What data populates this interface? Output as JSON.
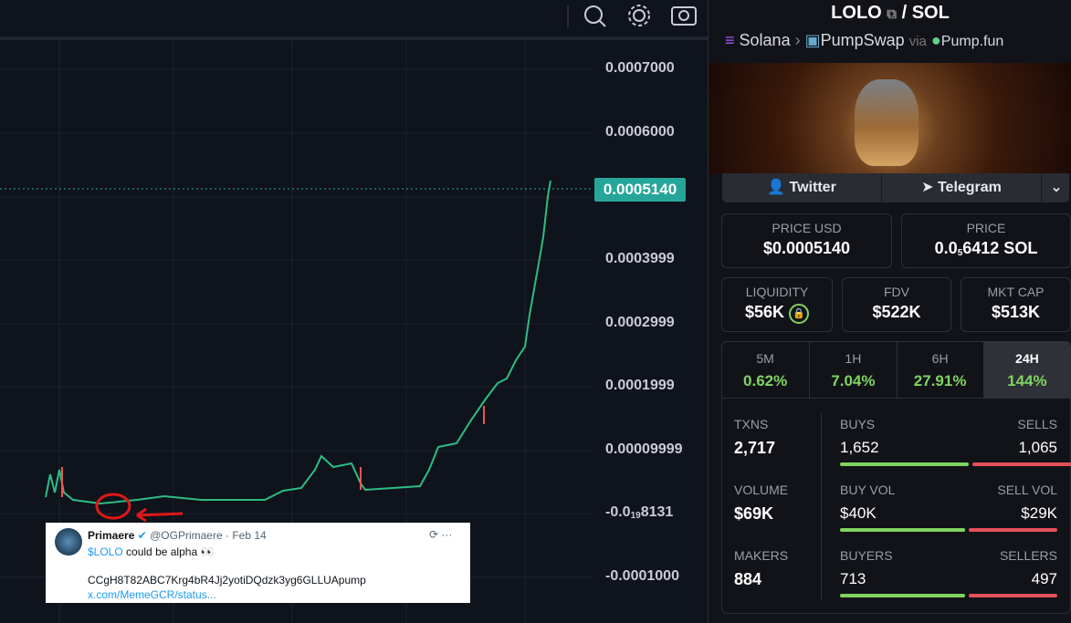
{
  "chart": {
    "axis_labels": [
      "0.0007000",
      "0.0006000",
      "0.0003999",
      "0.0002999",
      "0.0001999",
      "0.00009999",
      "-0.0001000"
    ],
    "current_price": "0.0005140",
    "small_label": {
      "prefix": "-0.0",
      "zeros": "19",
      "rest": "8131"
    }
  },
  "tweet": {
    "name": "Primaere",
    "handle": "@OGPrimaere · Feb 14",
    "cashtag": "$LOLO",
    "text": "could be alpha 👀",
    "contract": "CCgH8T82ABC7Krg4bR4Jj2yotiDQdzk3yg6GLLUApump",
    "link": "x.com/MemeGCR/status..."
  },
  "pair": {
    "base": "LOLO",
    "sep": "/",
    "quote": "SOL",
    "chain": "Solana",
    "dex": "PumpSwap",
    "via": "via",
    "launchpad": "Pump.fun"
  },
  "links": [
    "Twitter",
    "Telegram"
  ],
  "price": {
    "usd_label": "PRICE USD",
    "usd": "$0.0005140",
    "native_label": "PRICE",
    "native": {
      "prefix": "0.0",
      "zeros": "5",
      "rest": "6412 SOL"
    }
  },
  "metrics": [
    {
      "label": "LIQUIDITY",
      "value": "$56K"
    },
    {
      "label": "FDV",
      "value": "$522K"
    },
    {
      "label": "MKT CAP",
      "value": "$513K"
    }
  ],
  "periods": [
    {
      "label": "5M",
      "change": "0.62%"
    },
    {
      "label": "1H",
      "change": "7.04%"
    },
    {
      "label": "6H",
      "change": "27.91%"
    },
    {
      "label": "24H",
      "change": "144%"
    }
  ],
  "stats": [
    {
      "label": "TXNS",
      "value": "2,717",
      "left_label": "BUYS",
      "left": "1,652",
      "right_label": "SELLS",
      "right": "1,065"
    },
    {
      "label": "VOLUME",
      "value": "$69K",
      "left_label": "BUY VOL",
      "left": "$40K",
      "right_label": "SELL VOL",
      "right": "$29K"
    },
    {
      "label": "MAKERS",
      "value": "884",
      "left_label": "BUYERS",
      "left": "713",
      "right_label": "SELLERS",
      "right": "497"
    }
  ]
}
